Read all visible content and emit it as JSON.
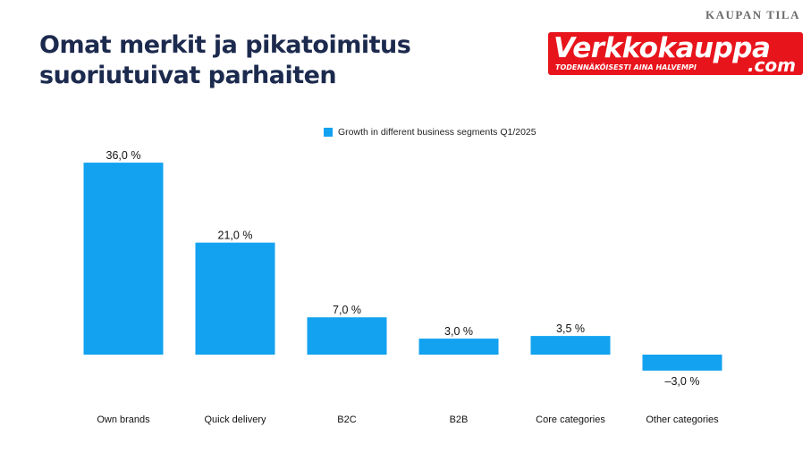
{
  "header": {
    "brand_tag": "KAUPAN TILA",
    "title_line1": "Omat merkit ja pikatoimitus",
    "title_line2": "suoriutuivat parhaiten"
  },
  "logo": {
    "word": "Verkkokauppa",
    "domain": ".com",
    "tagline": "TODENNÄKÖISESTI AINA HALVEMPI",
    "color": "#e8141c"
  },
  "chart_data": {
    "type": "bar",
    "categories": [
      "Own brands",
      "Quick delivery",
      "B2C",
      "B2B",
      "Core categories",
      "Other categories"
    ],
    "series": [
      {
        "name": "Growth in different business segments Q1/2025",
        "values": [
          36.0,
          21.0,
          7.0,
          3.0,
          3.5,
          -3.0
        ],
        "labels": [
          "36,0 %",
          "21,0 %",
          "7,0 %",
          "3,0 %",
          "3,5 %",
          "–3,0 %"
        ]
      }
    ],
    "title": "",
    "xlabel": "",
    "ylabel": "",
    "ylim": [
      -5,
      40
    ],
    "grid": false,
    "legend": "top-center",
    "bar_color": "#12a2f0"
  }
}
